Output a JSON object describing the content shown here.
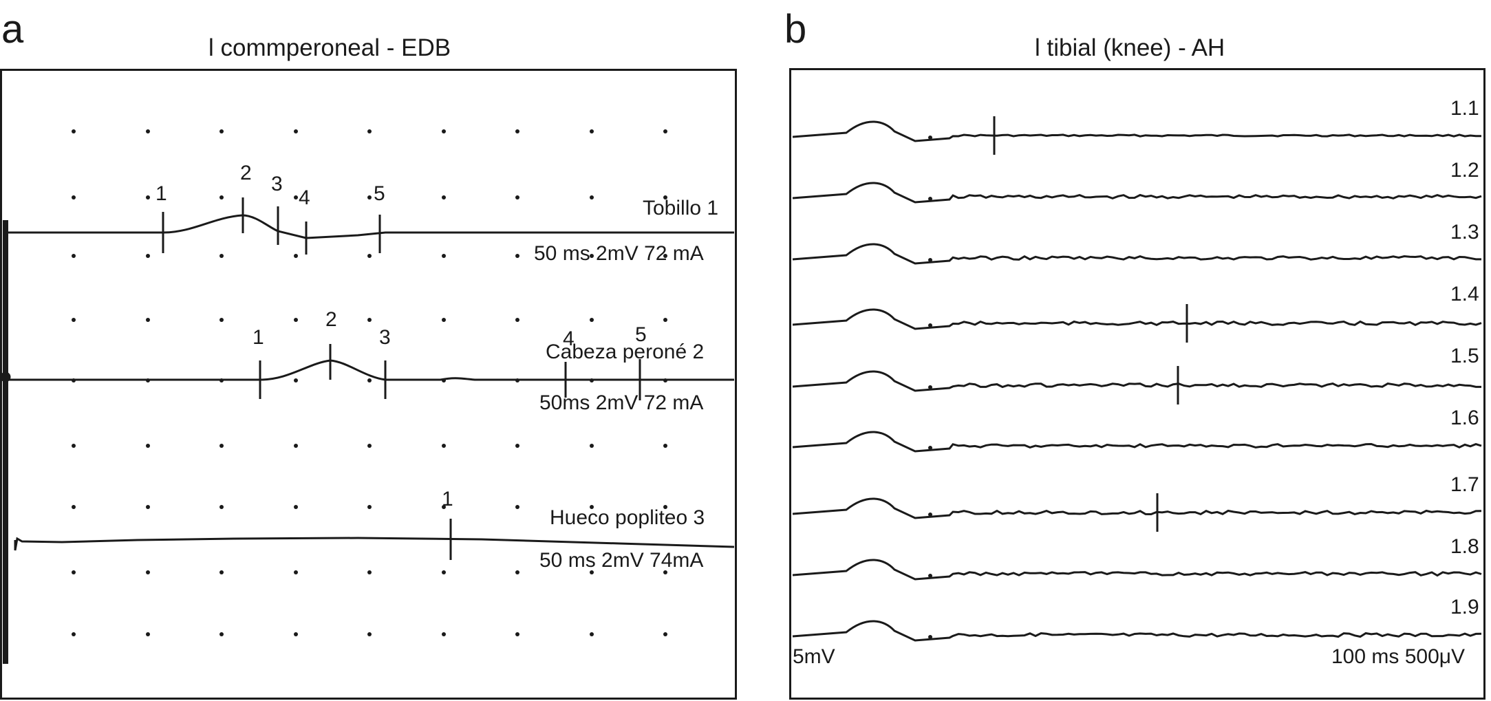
{
  "panel_a": {
    "letter": "a",
    "title": "l commperoneal - EDB",
    "traces": [
      {
        "label": "Tobillo 1",
        "settings": "50 ms 2mV 72 mA",
        "markers": [
          "1",
          "2",
          "3",
          "4",
          "5"
        ]
      },
      {
        "label": "Cabeza peroné 2",
        "settings": "50ms 2mV 72 mA",
        "markers": [
          "1",
          "2",
          "3",
          "4",
          "5"
        ]
      },
      {
        "label": "Hueco popliteo 3",
        "settings": "50 ms 2mV 74mA",
        "markers": [
          "1"
        ]
      }
    ]
  },
  "panel_b": {
    "letter": "b",
    "title": "l tibial (knee) - AH",
    "traces": [
      "1.1",
      "1.2",
      "1.3",
      "1.4",
      "1.5",
      "1.6",
      "1.7",
      "1.8",
      "1.9"
    ],
    "scale_left": "5mV",
    "scale_right": "100 ms 500μV"
  },
  "colors": {
    "trace": "#1a1a1a",
    "background": "#ffffff"
  }
}
